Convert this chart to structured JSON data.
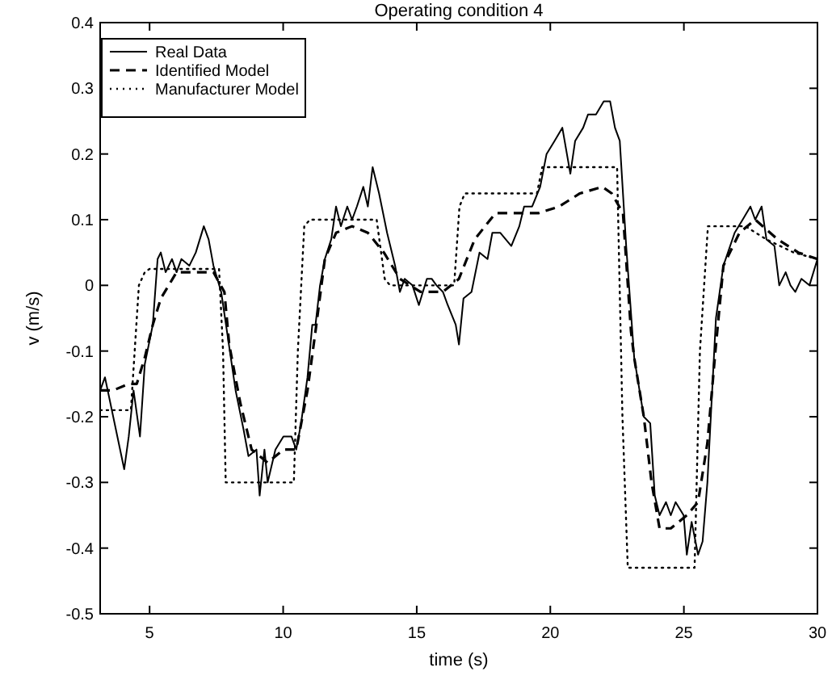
{
  "chart_data": {
    "type": "line",
    "title": "Operating condition 4",
    "xlabel": "time (s)",
    "ylabel": "v (m/s)",
    "xlim": [
      3.15,
      30
    ],
    "xticks": [
      5,
      10,
      15,
      20,
      25,
      30
    ],
    "ylim": [
      -0.5,
      0.4
    ],
    "yticks": [
      -0.5,
      -0.4,
      -0.3,
      -0.2,
      -0.1,
      0,
      0.1,
      0.2,
      0.3,
      0.4
    ],
    "grid": false,
    "legend": "top left",
    "series": [
      {
        "name": "Real Data",
        "color": "#000000",
        "line_style": "solid",
        "x": [
          3.15,
          3.33,
          4.05,
          4.22,
          4.4,
          4.64,
          4.82,
          5.12,
          5.3,
          5.42,
          5.6,
          5.84,
          6.01,
          6.19,
          6.49,
          6.73,
          7.03,
          7.21,
          7.39,
          7.68,
          8.22,
          8.52,
          8.7,
          9.0,
          9.12,
          9.3,
          9.42,
          9.71,
          10.01,
          10.31,
          10.49,
          10.67,
          10.91,
          11.09,
          11.21,
          11.38,
          11.56,
          11.8,
          11.98,
          12.16,
          12.4,
          12.58,
          12.76,
          13.0,
          13.17,
          13.35,
          13.59,
          13.89,
          14.19,
          14.37,
          14.55,
          14.84,
          15.08,
          15.38,
          15.56,
          15.74,
          15.98,
          16.16,
          16.46,
          16.58,
          16.75,
          17.05,
          17.35,
          17.65,
          17.83,
          18.13,
          18.54,
          18.84,
          19.02,
          19.32,
          19.62,
          19.86,
          20.16,
          20.45,
          20.75,
          20.93,
          21.23,
          21.41,
          21.71,
          22.0,
          22.24,
          22.42,
          22.6,
          22.84,
          23.14,
          23.5,
          23.74,
          23.91,
          24.09,
          24.33,
          24.51,
          24.69,
          24.99,
          25.11,
          25.29,
          25.53,
          25.7,
          25.88,
          26.2,
          26.48,
          26.9,
          27.2,
          27.49,
          27.67,
          27.91,
          28.09,
          28.39,
          28.57,
          28.81,
          28.99,
          29.17,
          29.4,
          29.7,
          30.0
        ],
        "values": [
          -0.16,
          -0.14,
          -0.28,
          -0.23,
          -0.16,
          -0.23,
          -0.12,
          -0.06,
          0.04,
          0.05,
          0.02,
          0.04,
          0.02,
          0.04,
          0.03,
          0.05,
          0.09,
          0.07,
          0.03,
          -0.01,
          -0.16,
          -0.22,
          -0.26,
          -0.25,
          -0.32,
          -0.25,
          -0.3,
          -0.25,
          -0.23,
          -0.23,
          -0.25,
          -0.21,
          -0.14,
          -0.06,
          -0.06,
          0.0,
          0.04,
          0.07,
          0.12,
          0.09,
          0.12,
          0.1,
          0.12,
          0.15,
          0.12,
          0.18,
          0.14,
          0.08,
          0.03,
          -0.01,
          0.01,
          0.0,
          -0.03,
          0.01,
          0.01,
          0.0,
          -0.01,
          -0.03,
          -0.06,
          -0.09,
          -0.02,
          -0.01,
          0.05,
          0.04,
          0.08,
          0.08,
          0.06,
          0.09,
          0.12,
          0.12,
          0.15,
          0.2,
          0.22,
          0.24,
          0.17,
          0.22,
          0.24,
          0.26,
          0.26,
          0.28,
          0.28,
          0.24,
          0.22,
          0.06,
          -0.11,
          -0.2,
          -0.21,
          -0.32,
          -0.35,
          -0.33,
          -0.35,
          -0.33,
          -0.35,
          -0.41,
          -0.36,
          -0.41,
          -0.39,
          -0.3,
          -0.05,
          0.03,
          0.08,
          0.1,
          0.12,
          0.1,
          0.12,
          0.07,
          0.06,
          0.0,
          0.02,
          0.0,
          -0.01,
          0.01,
          0.0,
          0.04
        ]
      },
      {
        "name": "Identified Model",
        "color": "#000000",
        "line_style": "dashed",
        "x": [
          3.15,
          3.63,
          4.22,
          4.52,
          4.82,
          5.12,
          5.42,
          6.01,
          6.61,
          7.39,
          7.8,
          7.98,
          8.4,
          8.82,
          9.42,
          10.01,
          10.49,
          10.91,
          11.21,
          11.56,
          11.98,
          12.58,
          13.17,
          13.77,
          14.37,
          15.14,
          15.98,
          16.58,
          17.17,
          17.95,
          18.96,
          19.56,
          20.33,
          21.11,
          21.95,
          22.3,
          22.72,
          23.02,
          23.14,
          23.5,
          23.79,
          24.09,
          24.51,
          25.11,
          25.53,
          25.88,
          26.18,
          26.48,
          27.08,
          27.67,
          28.51,
          29.28,
          30.0
        ],
        "values": [
          -0.16,
          -0.16,
          -0.15,
          -0.15,
          -0.11,
          -0.06,
          -0.02,
          0.02,
          0.02,
          0.02,
          -0.01,
          -0.09,
          -0.18,
          -0.25,
          -0.27,
          -0.25,
          -0.25,
          -0.16,
          -0.07,
          0.04,
          0.08,
          0.09,
          0.08,
          0.05,
          0.01,
          -0.01,
          -0.01,
          0.01,
          0.07,
          0.11,
          0.11,
          0.11,
          0.12,
          0.14,
          0.15,
          0.14,
          0.11,
          -0.07,
          -0.11,
          -0.2,
          -0.3,
          -0.37,
          -0.37,
          -0.35,
          -0.33,
          -0.24,
          -0.1,
          0.03,
          0.08,
          0.1,
          0.07,
          0.05,
          0.04
        ]
      },
      {
        "name": "Manufacturer Model",
        "color": "#000000",
        "line_style": "dotted",
        "x": [
          3.15,
          4.3,
          4.6,
          4.82,
          5.0,
          7.6,
          7.75,
          7.85,
          10.4,
          10.55,
          10.79,
          11.0,
          13.5,
          13.8,
          14.0,
          16.4,
          16.6,
          16.8,
          19.5,
          19.7,
          22.5,
          22.7,
          22.9,
          25.4,
          25.6,
          25.9,
          27.3,
          28.09,
          29.11,
          30.0
        ],
        "values": [
          -0.19,
          -0.19,
          0.0,
          0.02,
          0.025,
          0.025,
          -0.1,
          -0.3,
          -0.3,
          -0.1,
          0.09,
          0.1,
          0.1,
          0.01,
          0.0,
          0.0,
          0.12,
          0.14,
          0.14,
          0.18,
          0.18,
          -0.2,
          -0.43,
          -0.43,
          -0.1,
          0.09,
          0.09,
          0.07,
          0.05,
          0.04
        ]
      }
    ]
  }
}
